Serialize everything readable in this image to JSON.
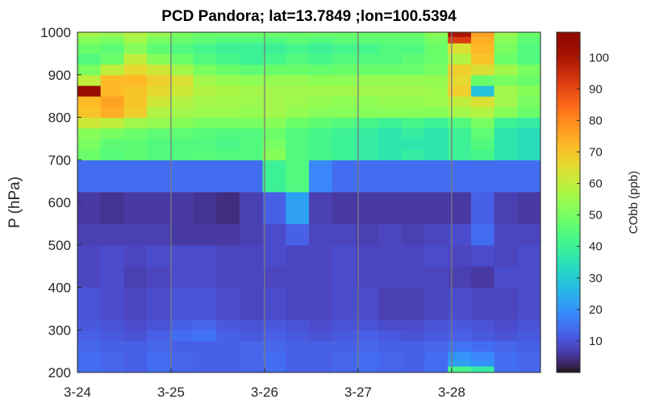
{
  "chart_data": {
    "type": "heatmap",
    "title": "PCD Pandora; lat=13.7849 ;lon=100.5394",
    "xlabel": "",
    "ylabel": "P (hPa)",
    "colorbar_label": "CObb (ppb)",
    "colormap": "turbo",
    "clim": [
      0,
      108
    ],
    "xlim": [
      0,
      4.95
    ],
    "ylim": [
      1000,
      200
    ],
    "y_reversed": true,
    "x_ticks": [
      0,
      1,
      2,
      3,
      4
    ],
    "x_tick_labels": [
      "3-24",
      "3-25",
      "3-26",
      "3-27",
      "3-28"
    ],
    "y_ticks": [
      200,
      300,
      400,
      500,
      600,
      700,
      800,
      900,
      1000
    ],
    "y_tick_labels": [
      "200",
      "300",
      "400",
      "500",
      "600",
      "700",
      "800",
      "900",
      "1000"
    ],
    "colorbar_ticks": [
      10,
      20,
      30,
      40,
      50,
      60,
      70,
      80,
      90,
      100
    ],
    "colorbar_tick_labels": [
      "10",
      "20",
      "30",
      "40",
      "50",
      "60",
      "70",
      "80",
      "90",
      "100"
    ],
    "day_gridlines": [
      1,
      2,
      3,
      4
    ],
    "layer_top_pressures": [
      200,
      215,
      230,
      250,
      275,
      300,
      325,
      350,
      375,
      400,
      450,
      500,
      550,
      625,
      700,
      725,
      750,
      775,
      800,
      825,
      850,
      875,
      900,
      925,
      950,
      975,
      990
    ],
    "layer_bottom_pressure": 1005,
    "time_bins": 20,
    "values": [
      [
        14,
        13,
        12,
        14,
        13,
        12,
        12,
        13,
        14,
        12,
        12,
        13,
        14,
        13,
        12,
        14,
        42,
        38,
        14,
        13
      ],
      [
        14,
        13,
        12,
        14,
        13,
        12,
        12,
        13,
        14,
        12,
        12,
        13,
        14,
        13,
        12,
        14,
        22,
        20,
        14,
        13
      ],
      [
        14,
        13,
        12,
        14,
        13,
        12,
        12,
        13,
        14,
        12,
        12,
        13,
        14,
        13,
        12,
        14,
        20,
        18,
        14,
        13
      ],
      [
        13,
        12,
        12,
        13,
        12,
        12,
        12,
        13,
        13,
        12,
        12,
        12,
        13,
        12,
        12,
        13,
        15,
        14,
        13,
        12
      ],
      [
        12,
        11,
        10,
        12,
        14,
        15,
        12,
        11,
        12,
        11,
        10,
        11,
        12,
        11,
        10,
        11,
        12,
        11,
        10,
        11
      ],
      [
        11,
        10,
        9,
        10,
        12,
        13,
        11,
        10,
        11,
        10,
        9,
        10,
        10,
        9,
        9,
        10,
        11,
        10,
        9,
        10
      ],
      [
        10,
        9,
        8,
        9,
        10,
        10,
        9,
        8,
        9,
        8,
        8,
        9,
        9,
        7,
        7,
        8,
        9,
        8,
        8,
        9
      ],
      [
        10,
        9,
        8,
        9,
        10,
        10,
        9,
        8,
        9,
        8,
        8,
        9,
        9,
        7,
        7,
        8,
        9,
        8,
        8,
        9
      ],
      [
        10,
        9,
        8,
        9,
        10,
        10,
        9,
        8,
        9,
        8,
        8,
        9,
        9,
        7,
        7,
        8,
        9,
        8,
        8,
        9
      ],
      [
        8,
        9,
        7,
        8,
        9,
        9,
        8,
        8,
        8,
        8,
        8,
        9,
        8,
        8,
        8,
        8,
        7,
        6,
        9,
        9
      ],
      [
        8,
        9,
        8,
        9,
        9,
        9,
        8,
        8,
        9,
        8,
        8,
        9,
        8,
        8,
        8,
        9,
        8,
        9,
        8,
        9
      ],
      [
        7,
        7,
        7,
        7,
        6,
        6,
        6,
        7,
        9,
        12,
        8,
        8,
        7,
        8,
        7,
        8,
        9,
        14,
        8,
        8
      ],
      [
        6,
        5,
        6,
        6,
        6,
        5,
        4,
        7,
        12,
        22,
        7,
        6,
        6,
        6,
        6,
        6,
        6,
        12,
        7,
        6
      ],
      [
        14,
        14,
        14,
        14,
        14,
        14,
        14,
        14,
        40,
        44,
        18,
        14,
        14,
        14,
        14,
        14,
        14,
        14,
        14,
        14
      ],
      [
        48,
        45,
        46,
        44,
        44,
        45,
        44,
        44,
        52,
        44,
        42,
        40,
        38,
        36,
        38,
        36,
        40,
        42,
        36,
        34
      ],
      [
        50,
        46,
        46,
        44,
        44,
        44,
        43,
        44,
        50,
        44,
        42,
        40,
        38,
        36,
        36,
        36,
        40,
        44,
        36,
        34
      ],
      [
        52,
        50,
        48,
        46,
        46,
        45,
        44,
        44,
        48,
        44,
        42,
        40,
        38,
        36,
        38,
        36,
        40,
        46,
        36,
        34
      ],
      [
        62,
        60,
        56,
        54,
        52,
        50,
        50,
        50,
        52,
        48,
        46,
        44,
        42,
        40,
        42,
        40,
        44,
        50,
        40,
        38
      ],
      [
        70,
        74,
        68,
        58,
        56,
        55,
        55,
        54,
        56,
        54,
        52,
        52,
        52,
        52,
        52,
        52,
        56,
        58,
        52,
        48
      ],
      [
        72,
        76,
        70,
        62,
        58,
        56,
        56,
        55,
        56,
        55,
        54,
        53,
        53,
        54,
        54,
        55,
        60,
        64,
        56,
        50
      ],
      [
        104,
        72,
        70,
        66,
        62,
        58,
        57,
        56,
        56,
        56,
        56,
        56,
        56,
        56,
        56,
        55,
        68,
        28,
        56,
        52
      ],
      [
        60,
        72,
        72,
        68,
        64,
        56,
        54,
        53,
        54,
        54,
        53,
        53,
        54,
        54,
        54,
        54,
        66,
        48,
        50,
        48
      ],
      [
        50,
        60,
        66,
        62,
        56,
        50,
        48,
        46,
        48,
        48,
        47,
        48,
        48,
        48,
        48,
        50,
        68,
        64,
        56,
        50
      ],
      [
        44,
        48,
        60,
        52,
        48,
        44,
        42,
        40,
        42,
        44,
        42,
        44,
        44,
        44,
        46,
        48,
        58,
        70,
        48,
        44
      ],
      [
        48,
        46,
        52,
        46,
        44,
        42,
        40,
        40,
        40,
        42,
        40,
        42,
        42,
        44,
        44,
        48,
        64,
        72,
        50,
        44
      ],
      [
        52,
        50,
        56,
        50,
        48,
        46,
        44,
        44,
        44,
        46,
        44,
        46,
        46,
        46,
        46,
        50,
        92,
        74,
        52,
        46
      ],
      [
        56,
        54,
        58,
        54,
        50,
        48,
        48,
        48,
        48,
        48,
        48,
        48,
        48,
        48,
        48,
        52,
        100,
        76,
        54,
        48
      ]
    ]
  }
}
